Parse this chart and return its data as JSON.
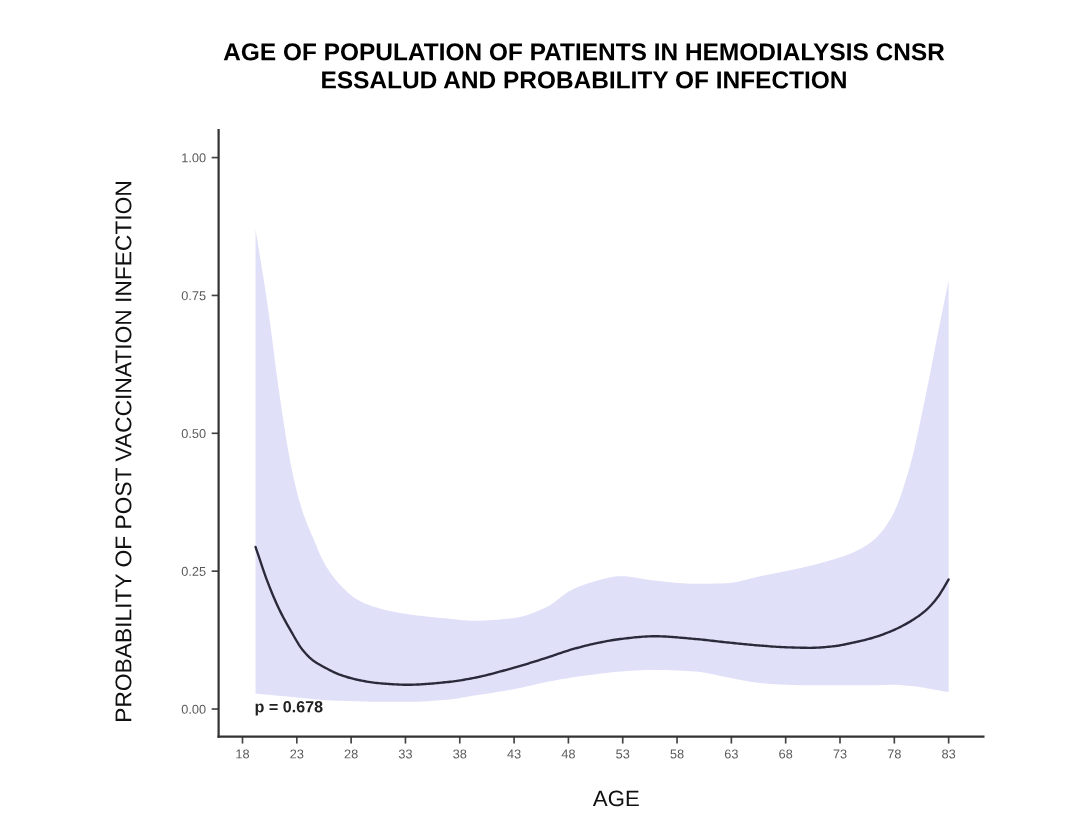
{
  "chart_data": {
    "type": "line",
    "title": "AGE OF POPULATION OF PATIENTS IN HEMODIALYSIS CNSR\nESSALUD AND PROBABILITY OF INFECTION",
    "xlabel": "AGE",
    "ylabel": "PROBABILITY OF POST VACCINATION INFECTION",
    "annotations": [
      "p = 0.678"
    ],
    "xlim": [
      15.8,
      86.2
    ],
    "xticks": [
      18,
      23,
      28,
      33,
      38,
      43,
      48,
      53,
      58,
      63,
      68,
      73,
      78,
      83
    ],
    "ylim": [
      -0.05,
      1.05
    ],
    "yticks": [
      {
        "value": 0,
        "label": "0.00"
      },
      {
        "value": 0.25,
        "label": "0.25"
      },
      {
        "value": 0.5,
        "label": "0.50"
      },
      {
        "value": 0.75,
        "label": "0.75"
      },
      {
        "value": 1,
        "label": "1.00"
      }
    ],
    "series": [
      {
        "color": "#2a2a3a",
        "x": [
          19.2,
          20.3,
          21.4,
          22.5,
          23.5,
          24.5,
          25.6,
          27.0,
          28.6,
          30.5,
          33.2,
          36.9,
          39.2,
          43.0,
          46.0,
          48.3,
          50.5,
          52.8,
          55.9,
          59.7,
          62.5,
          65.7,
          68.0,
          70.3,
          72.5,
          74.1,
          76.0,
          77.8,
          79.4,
          80.9,
          82.0,
          83.0
        ],
        "values": [
          0.294,
          0.231,
          0.18,
          0.14,
          0.108,
          0.088,
          0.075,
          0.062,
          0.053,
          0.047,
          0.044,
          0.049,
          0.056,
          0.075,
          0.093,
          0.108,
          0.119,
          0.127,
          0.132,
          0.127,
          0.121,
          0.115,
          0.112,
          0.111,
          0.114,
          0.12,
          0.129,
          0.142,
          0.158,
          0.179,
          0.203,
          0.235
        ],
        "lower": [
          0.028,
          0.026,
          0.024,
          0.022,
          0.02,
          0.018,
          0.016,
          0.015,
          0.014,
          0.013,
          0.013,
          0.017,
          0.024,
          0.036,
          0.049,
          0.057,
          0.063,
          0.068,
          0.071,
          0.068,
          0.058,
          0.047,
          0.044,
          0.043,
          0.043,
          0.043,
          0.043,
          0.044,
          0.042,
          0.038,
          0.034,
          0.031
        ],
        "upper": [
          0.87,
          0.734,
          0.571,
          0.438,
          0.36,
          0.31,
          0.262,
          0.225,
          0.198,
          0.183,
          0.172,
          0.164,
          0.16,
          0.165,
          0.185,
          0.216,
          0.232,
          0.241,
          0.233,
          0.227,
          0.228,
          0.241,
          0.25,
          0.26,
          0.272,
          0.283,
          0.305,
          0.35,
          0.438,
          0.57,
          0.68,
          0.778
        ]
      }
    ]
  }
}
